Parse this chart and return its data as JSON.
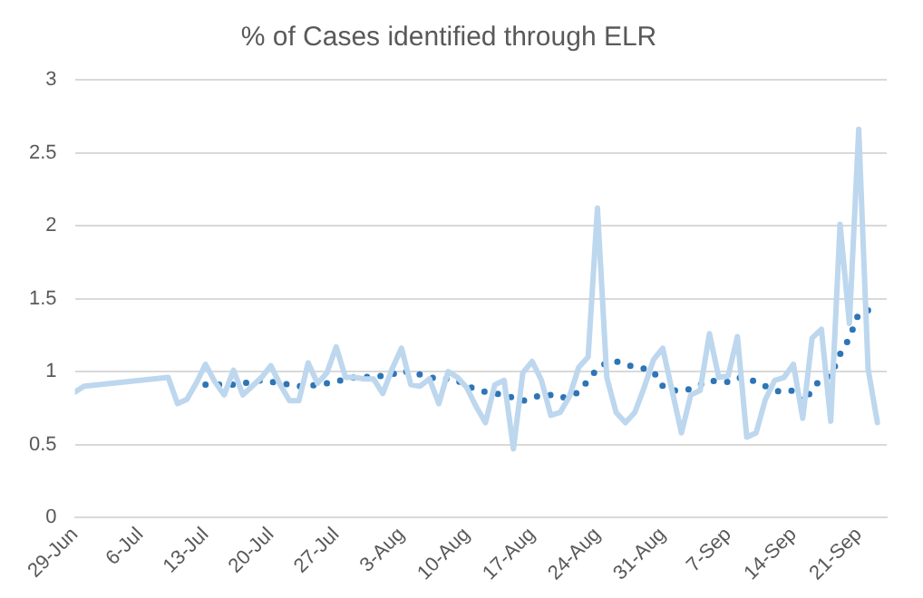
{
  "chart_data": {
    "type": "line",
    "title": "% of Cases identified through ELR",
    "xlim": [
      "--06-29",
      "--09-24"
    ],
    "xticks": [
      {
        "value": "--06-29",
        "label": "29-Jun"
      },
      {
        "value": "--07-06",
        "label": "6-Jul"
      },
      {
        "value": "--07-13",
        "label": "13-Jul"
      },
      {
        "value": "--07-20",
        "label": "20-Jul"
      },
      {
        "value": "--07-27",
        "label": "27-Jul"
      },
      {
        "value": "--08-03",
        "label": "3-Aug"
      },
      {
        "value": "--08-10",
        "label": "10-Aug"
      },
      {
        "value": "--08-17",
        "label": "17-Aug"
      },
      {
        "value": "--08-24",
        "label": "24-Aug"
      },
      {
        "value": "--08-31",
        "label": "31-Aug"
      },
      {
        "value": "--09-07",
        "label": "7-Sep"
      },
      {
        "value": "--09-14",
        "label": "14-Sep"
      },
      {
        "value": "--09-21",
        "label": "21-Sep"
      }
    ],
    "ylim": [
      0,
      3
    ],
    "yticks": [
      0,
      0.5,
      1,
      1.5,
      2,
      2.5,
      3
    ],
    "grid": "y",
    "legend": false,
    "series": [
      {
        "color": "#bdd7ee",
        "line_style": "solid",
        "x": [
          "--06-29",
          "--06-30",
          "--07-09",
          "--07-10",
          "--07-11",
          "--07-12",
          "--07-13",
          "--07-14",
          "--07-15",
          "--07-16",
          "--07-17",
          "--07-18",
          "--07-19",
          "--07-20",
          "--07-21",
          "--07-22",
          "--07-23",
          "--07-24",
          "--07-25",
          "--07-26",
          "--07-27",
          "--07-28",
          "--07-29",
          "--07-30",
          "--07-31",
          "--08-01",
          "--08-02",
          "--08-03",
          "--08-04",
          "--08-05",
          "--08-06",
          "--08-07",
          "--08-08",
          "--08-09",
          "--08-10",
          "--08-11",
          "--08-12",
          "--08-13",
          "--08-14",
          "--08-15",
          "--08-16",
          "--08-17",
          "--08-18",
          "--08-19",
          "--08-20",
          "--08-21",
          "--08-22",
          "--08-23",
          "--08-24",
          "--08-25",
          "--08-26",
          "--08-27",
          "--08-28",
          "--08-29",
          "--08-30",
          "--08-31",
          "--09-01",
          "--09-02",
          "--09-03",
          "--09-04",
          "--09-05",
          "--09-06",
          "--09-07",
          "--09-08",
          "--09-09",
          "--09-10",
          "--09-11",
          "--09-12",
          "--09-13",
          "--09-14",
          "--09-15",
          "--09-16",
          "--09-17",
          "--09-18",
          "--09-19",
          "--09-20",
          "--09-21",
          "--09-22",
          "--09-23"
        ],
        "values": [
          0.86,
          0.9,
          0.96,
          0.78,
          0.81,
          0.92,
          1.05,
          0.93,
          0.84,
          1.01,
          0.84,
          0.9,
          0.96,
          1.04,
          0.91,
          0.8,
          0.8,
          1.06,
          0.92,
          0.99,
          1.17,
          0.96,
          0.96,
          0.95,
          0.95,
          0.85,
          1.02,
          1.16,
          0.91,
          0.9,
          0.95,
          0.78,
          1.0,
          0.96,
          0.89,
          0.76,
          0.65,
          0.91,
          0.94,
          0.47,
          0.99,
          1.07,
          0.94,
          0.7,
          0.72,
          0.83,
          1.03,
          1.1,
          2.12,
          0.96,
          0.72,
          0.65,
          0.72,
          0.89,
          1.08,
          1.16,
          0.87,
          0.58,
          0.84,
          0.87,
          1.26,
          0.96,
          0.97,
          1.24,
          0.55,
          0.58,
          0.81,
          0.94,
          0.96,
          1.05,
          0.68,
          1.23,
          1.29,
          0.66,
          2.01,
          1.33,
          2.66,
          1.02,
          0.65
        ]
      },
      {
        "color": "#2e75b6",
        "line_style": "dotted",
        "x": [
          "--07-13",
          "--07-14",
          "--07-15",
          "--07-16",
          "--07-17",
          "--07-18",
          "--07-19",
          "--07-20",
          "--07-21",
          "--07-22",
          "--07-23",
          "--07-24",
          "--07-25",
          "--07-26",
          "--07-27",
          "--07-28",
          "--07-29",
          "--07-30",
          "--07-31",
          "--08-01",
          "--08-02",
          "--08-03",
          "--08-04",
          "--08-05",
          "--08-06",
          "--08-07",
          "--08-08",
          "--08-09",
          "--08-10",
          "--08-11",
          "--08-12",
          "--08-13",
          "--08-14",
          "--08-15",
          "--08-16",
          "--08-17",
          "--08-18",
          "--08-19",
          "--08-20",
          "--08-21",
          "--08-22",
          "--08-23",
          "--08-24",
          "--08-25",
          "--08-26",
          "--08-27",
          "--08-28",
          "--08-29",
          "--08-30",
          "--08-31",
          "--09-01",
          "--09-02",
          "--09-03",
          "--09-04",
          "--09-05",
          "--09-06",
          "--09-07",
          "--09-08",
          "--09-09",
          "--09-10",
          "--09-11",
          "--09-12",
          "--09-13",
          "--09-14",
          "--09-15",
          "--09-16",
          "--09-17",
          "--09-18",
          "--09-19",
          "--09-20",
          "--09-21",
          "--09-22",
          "--09-23"
        ],
        "values": [
          0.91,
          0.91,
          0.91,
          0.91,
          0.92,
          0.93,
          0.94,
          0.93,
          0.92,
          0.91,
          0.9,
          0.9,
          0.91,
          0.92,
          0.93,
          0.95,
          0.96,
          0.96,
          0.97,
          0.97,
          0.98,
          1.01,
          0.99,
          0.98,
          0.96,
          0.95,
          0.95,
          0.94,
          0.9,
          0.88,
          0.86,
          0.85,
          0.84,
          0.82,
          0.8,
          0.82,
          0.84,
          0.84,
          0.82,
          0.83,
          0.86,
          0.94,
          1.02,
          1.06,
          1.07,
          1.05,
          1.03,
          1.02,
          1.0,
          0.9,
          0.87,
          0.87,
          0.88,
          0.91,
          0.94,
          0.93,
          0.93,
          0.96,
          0.95,
          0.93,
          0.9,
          0.87,
          0.86,
          0.87,
          0.79,
          0.87,
          0.96,
          0.97,
          1.12,
          1.23,
          1.4,
          1.42,
          1.4
        ]
      }
    ]
  }
}
